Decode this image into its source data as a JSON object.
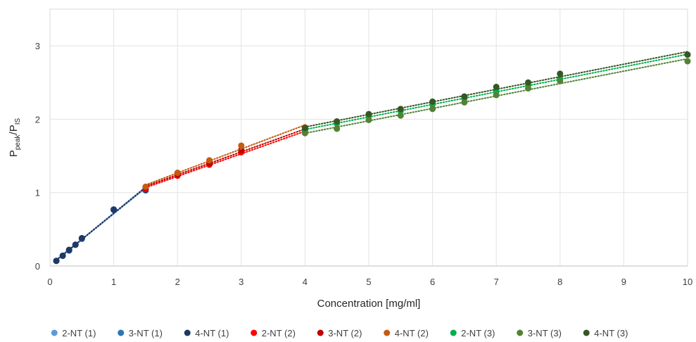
{
  "chart_data": {
    "type": "scatter",
    "title": "",
    "xlabel": "Concentration [mg/ml]",
    "ylabel": {
      "main": "P",
      "sub1": "peak",
      "sep": "/P",
      "sub2": "IS"
    },
    "xlim": [
      0,
      10
    ],
    "ylim": [
      0,
      3.5
    ],
    "xticks": [
      0,
      1,
      2,
      3,
      4,
      5,
      6,
      7,
      8,
      9,
      10
    ],
    "yticks": [
      0,
      1,
      2,
      3
    ],
    "grid": true,
    "legend_position": "bottom",
    "series": [
      {
        "name": "2-NT (1)",
        "color": "#5b9bd5",
        "x": [
          0.1,
          0.2,
          0.3,
          0.4,
          0.5,
          1.0,
          1.5
        ],
        "y": [
          0.07,
          0.14,
          0.21,
          0.29,
          0.37,
          0.76,
          1.03
        ]
      },
      {
        "name": "3-NT (1)",
        "color": "#2e75b6",
        "x": [
          0.1,
          0.2,
          0.3,
          0.4,
          0.5,
          1.0,
          1.5
        ],
        "y": [
          0.07,
          0.14,
          0.21,
          0.29,
          0.37,
          0.77,
          1.03
        ]
      },
      {
        "name": "4-NT (1)",
        "color": "#1f3864",
        "x": [
          0.1,
          0.2,
          0.3,
          0.4,
          0.5,
          1.0,
          1.5
        ],
        "y": [
          0.07,
          0.14,
          0.22,
          0.29,
          0.38,
          0.77,
          1.04
        ]
      },
      {
        "name": "2-NT (2)",
        "color": "#ff0000",
        "x": [
          1.5,
          2.0,
          2.5,
          3.0,
          4.0
        ],
        "y": [
          1.05,
          1.23,
          1.38,
          1.55,
          1.82
        ]
      },
      {
        "name": "3-NT (2)",
        "color": "#c00000",
        "x": [
          1.5,
          2.0,
          2.5,
          3.0,
          4.0
        ],
        "y": [
          1.07,
          1.25,
          1.4,
          1.58,
          1.85
        ]
      },
      {
        "name": "4-NT (2)",
        "color": "#c55a11",
        "x": [
          1.5,
          2.0,
          2.5,
          3.0,
          4.0
        ],
        "y": [
          1.08,
          1.27,
          1.44,
          1.64,
          1.89
        ]
      },
      {
        "name": "2-NT (3)",
        "color": "#00b050",
        "x": [
          4.0,
          4.5,
          5.0,
          5.5,
          6.0,
          6.5,
          7.0,
          7.5,
          8.0,
          10.0
        ],
        "y": [
          1.86,
          1.94,
          2.04,
          2.11,
          2.2,
          2.28,
          2.38,
          2.46,
          2.55,
          2.88
        ]
      },
      {
        "name": "3-NT (3)",
        "color": "#548235",
        "x": [
          4.0,
          4.5,
          5.0,
          5.5,
          6.0,
          6.5,
          7.0,
          7.5,
          8.0,
          10.0
        ],
        "y": [
          1.81,
          1.87,
          1.99,
          2.05,
          2.14,
          2.23,
          2.33,
          2.42,
          2.52,
          2.79
        ]
      },
      {
        "name": "4-NT (3)",
        "color": "#375623",
        "x": [
          4.0,
          4.5,
          5.0,
          5.5,
          6.0,
          6.5,
          7.0,
          7.5,
          8.0,
          10.0
        ],
        "y": [
          1.88,
          1.97,
          2.07,
          2.14,
          2.24,
          2.31,
          2.44,
          2.5,
          2.62,
          2.88
        ]
      }
    ]
  }
}
